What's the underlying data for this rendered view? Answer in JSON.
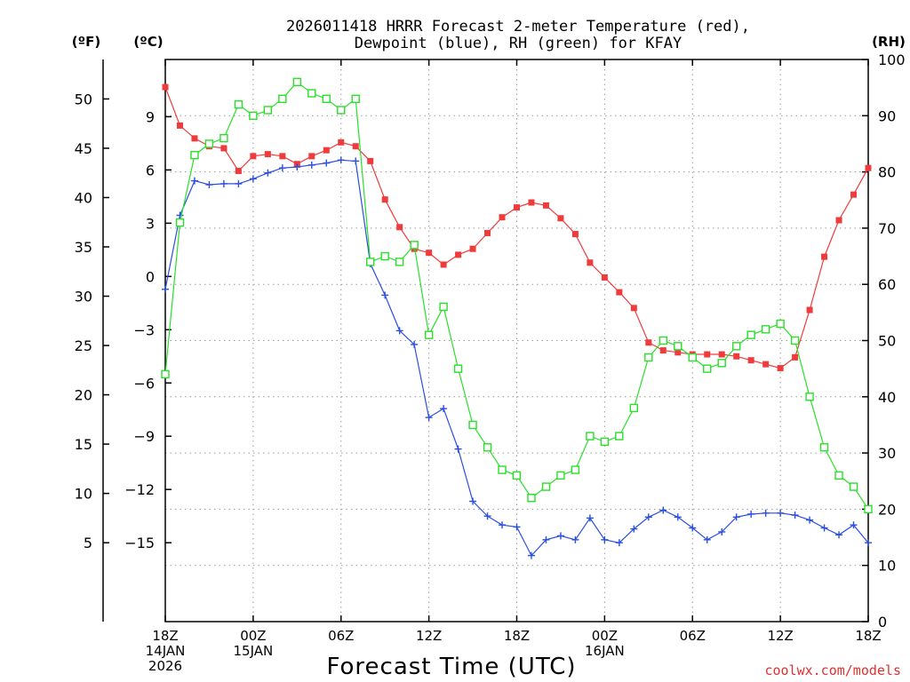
{
  "chart_data": {
    "type": "line",
    "title_line1": "2026011418 HRRR Forecast 2-meter Temperature (red),",
    "title_line2": "Dewpoint (blue), RH (green) for KFAY",
    "unit_f": "(ºF)",
    "unit_c": "(ºC)",
    "unit_rh": "(RH)",
    "xlabel": "Forecast Time (UTC)",
    "credit": "coolwx.com/models",
    "x_range": [
      0,
      48
    ],
    "f_axis": {
      "range": [
        -3,
        54
      ],
      "ticks": [
        "5",
        "10",
        "15",
        "20",
        "25",
        "30",
        "35",
        "40",
        "45",
        "50"
      ],
      "tick_values": [
        5,
        10,
        15,
        20,
        25,
        30,
        35,
        40,
        45,
        50
      ]
    },
    "c_axis": {
      "ticks": [
        "−15",
        "−12",
        "−9",
        "−6",
        "−3",
        "0",
        "3",
        "6",
        "9"
      ],
      "tick_values": [
        -15,
        -12,
        -9,
        -6,
        -3,
        0,
        3,
        6,
        9
      ]
    },
    "rh_axis": {
      "range": [
        0,
        100
      ],
      "ticks": [
        "0",
        "10",
        "20",
        "30",
        "40",
        "50",
        "60",
        "70",
        "80",
        "90",
        "100"
      ],
      "tick_values": [
        0,
        10,
        20,
        30,
        40,
        50,
        60,
        70,
        80,
        90,
        100
      ]
    },
    "x_ticks": [
      {
        "hour": 0,
        "lines": [
          "18Z",
          "14JAN",
          "2026"
        ]
      },
      {
        "hour": 6,
        "lines": [
          "00Z",
          "15JAN"
        ]
      },
      {
        "hour": 12,
        "lines": [
          "06Z"
        ]
      },
      {
        "hour": 18,
        "lines": [
          "12Z"
        ]
      },
      {
        "hour": 24,
        "lines": [
          "18Z"
        ]
      },
      {
        "hour": 30,
        "lines": [
          "00Z",
          "16JAN"
        ]
      },
      {
        "hour": 36,
        "lines": [
          "06Z"
        ]
      },
      {
        "hour": 42,
        "lines": [
          "12Z"
        ]
      },
      {
        "hour": 48,
        "lines": [
          "18Z"
        ]
      }
    ],
    "series": [
      {
        "name": "Temperature (°F)",
        "color": "#ef3b3b",
        "marker": "filled-square",
        "axis": "f",
        "values": [
          51.2,
          47.3,
          46.0,
          45.2,
          45.0,
          42.7,
          44.2,
          44.4,
          44.2,
          43.4,
          44.2,
          44.8,
          45.6,
          45.2,
          43.7,
          39.8,
          37.0,
          34.8,
          34.4,
          33.2,
          34.2,
          34.8,
          36.4,
          38.0,
          39.0,
          39.5,
          39.2,
          37.9,
          36.3,
          33.4,
          31.9,
          30.4,
          28.8,
          25.3,
          24.5,
          24.3,
          24.1,
          24.1,
          24.1,
          23.9,
          23.5,
          23.1,
          22.7,
          23.8,
          28.6,
          34.0,
          37.7,
          40.3,
          43.0
        ]
      },
      {
        "name": "Dewpoint (°F)",
        "color": "#2a4ee0",
        "marker": "plus",
        "axis": "f",
        "values": [
          30.7,
          38.2,
          41.7,
          41.3,
          41.4,
          41.4,
          41.9,
          42.5,
          43.0,
          43.1,
          43.3,
          43.5,
          43.8,
          43.7,
          33.3,
          30.1,
          26.5,
          25.1,
          17.7,
          18.6,
          14.5,
          9.2,
          7.7,
          6.8,
          6.6,
          3.7,
          5.3,
          5.7,
          5.3,
          7.5,
          5.3,
          5.0,
          6.4,
          7.6,
          8.3,
          7.6,
          6.5,
          5.3,
          6.1,
          7.6,
          7.9,
          8.0,
          8.0,
          7.8,
          7.3,
          6.5,
          5.8,
          6.8,
          5.0
        ]
      },
      {
        "name": "Relative Humidity (%)",
        "color": "#2adf2a",
        "marker": "open-square",
        "axis": "rh",
        "values": [
          44,
          71,
          83,
          85,
          86,
          92,
          90,
          91,
          93,
          96,
          94,
          93,
          91,
          93,
          64,
          65,
          64,
          67,
          51,
          56,
          45,
          35,
          31,
          27,
          26,
          22,
          24,
          26,
          27,
          33,
          32,
          33,
          38,
          47,
          50,
          49,
          47,
          45,
          46,
          49,
          51,
          52,
          53,
          50,
          40,
          31,
          26,
          24,
          20
        ]
      }
    ]
  }
}
